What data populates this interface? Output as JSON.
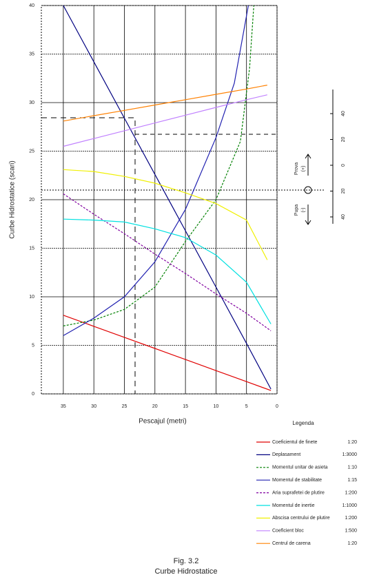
{
  "chart_data": {
    "type": "line",
    "title": "Fig. 3.2",
    "subtitle": "Curbe Hidrostatice",
    "x_label": "Pescajul (metri)",
    "y_label": "Curbe Hidrostatice (scari)",
    "legend_title": "Legenda",
    "xlim": [
      38.6,
      0
    ],
    "xticks": [
      35,
      30,
      25,
      20,
      15,
      10,
      5,
      0
    ],
    "ylim": [
      0,
      40
    ],
    "yticks": [
      0,
      5,
      10,
      15,
      20,
      25,
      30,
      35,
      40
    ],
    "grid": true,
    "series": [
      {
        "name": "Coeficientul de finete",
        "scale": "1:20",
        "color": "#e00000",
        "dash": false,
        "x": [
          35,
          30,
          25,
          20,
          15,
          10,
          5,
          1
        ],
        "values": [
          8.1,
          6.96,
          5.82,
          4.68,
          3.54,
          2.4,
          1.26,
          0.35
        ]
      },
      {
        "name": "Deplasament",
        "scale": "1:3000",
        "color": "#000080",
        "dash": false,
        "x": [
          35,
          30,
          25,
          20,
          15,
          10,
          5,
          1
        ],
        "values": [
          40,
          34.2,
          28.4,
          22.6,
          16.8,
          11,
          5.2,
          0.5
        ]
      },
      {
        "name": "Momentul unitar de asieta",
        "scale": "1:10",
        "color": "#008000",
        "dash": true,
        "x": [
          35,
          30,
          25,
          20,
          15,
          10,
          6,
          4.5,
          3.8
        ],
        "values": [
          7.0,
          7.6,
          8.7,
          11.0,
          15.7,
          20.0,
          26,
          33.5,
          40
        ]
      },
      {
        "name": "Momentul de stabilitate",
        "scale": "1:15",
        "color": "#2020b0",
        "dash": false,
        "x": [
          35,
          30,
          25,
          20,
          15,
          10,
          7,
          4.7
        ],
        "values": [
          6,
          7.8,
          10,
          13.6,
          19,
          26.4,
          32,
          40
        ]
      },
      {
        "name": "Aria suprafetei de plutire",
        "scale": "1:200",
        "color": "#8000a0",
        "dash": true,
        "x": [
          35,
          30,
          25,
          20,
          15,
          10,
          5,
          1
        ],
        "values": [
          20.6,
          18.5,
          16.5,
          14.4,
          12.4,
          10.3,
          8.3,
          6.5
        ]
      },
      {
        "name": "Momentul de inertie",
        "scale": "1:1000",
        "color": "#00e0e0",
        "dash": false,
        "x": [
          35,
          30,
          25,
          20,
          15,
          10,
          5,
          1
        ],
        "values": [
          18,
          17.9,
          17.7,
          17.0,
          16.1,
          14.3,
          11.5,
          7.2
        ]
      },
      {
        "name": "Abscisa centrului de plutire",
        "scale": "1:200",
        "color": "#f0f000",
        "dash": false,
        "x": [
          35,
          30,
          25,
          20,
          15,
          10,
          5,
          1.6
        ],
        "values": [
          23.1,
          22.9,
          22.4,
          21.7,
          20.7,
          19.6,
          17.9,
          13.8
        ]
      },
      {
        "name": "Coeficient bloc",
        "scale": "1:500",
        "color": "#c080ff",
        "dash": false,
        "x": [
          35,
          30,
          25,
          20,
          15,
          10,
          5,
          1.6
        ],
        "values": [
          25.5,
          26.3,
          27.1,
          27.9,
          28.7,
          29.5,
          30.3,
          30.8
        ]
      },
      {
        "name": "Centrul de carena",
        "scale": "1:20",
        "color": "#ff8000",
        "dash": false,
        "x": [
          35,
          30,
          25,
          20,
          15,
          10,
          5,
          1.6
        ],
        "values": [
          28.1,
          28.65,
          29.2,
          29.75,
          30.3,
          30.85,
          31.4,
          31.8
        ]
      }
    ],
    "trim_gauge": {
      "bow": "Prova",
      "bow_sign": "(+)",
      "stern": "Pupa",
      "stern_sign": "(-)",
      "ticks": [
        40,
        20,
        0,
        20,
        40
      ]
    }
  }
}
